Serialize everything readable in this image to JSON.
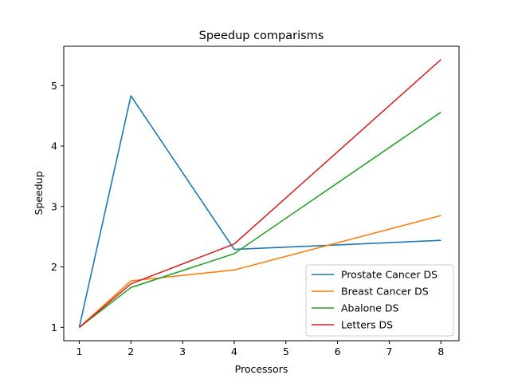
{
  "chart_data": {
    "type": "line",
    "title": "Speedup comparisms",
    "xlabel": "Processors",
    "ylabel": "Speedup",
    "x": [
      1,
      2,
      4,
      8
    ],
    "xlim": [
      0.7,
      8.35
    ],
    "ylim": [
      0.78,
      5.65
    ],
    "xticks": [
      1,
      2,
      3,
      4,
      5,
      6,
      7,
      8
    ],
    "yticks": [
      1,
      2,
      3,
      4,
      5
    ],
    "grid": false,
    "legend_position": "bottom-right",
    "series": [
      {
        "name": "Prostate Cancer DS",
        "color": "#1f77b4",
        "values": [
          1.0,
          4.83,
          2.29,
          2.44
        ]
      },
      {
        "name": "Breast Cancer DS",
        "color": "#ff7f0e",
        "values": [
          1.0,
          1.77,
          1.95,
          2.85
        ]
      },
      {
        "name": "Abalone DS",
        "color": "#2ca02c",
        "values": [
          1.0,
          1.66,
          2.22,
          4.56
        ]
      },
      {
        "name": "Letters DS",
        "color": "#d62728",
        "values": [
          1.0,
          1.72,
          2.38,
          5.43
        ]
      }
    ]
  }
}
